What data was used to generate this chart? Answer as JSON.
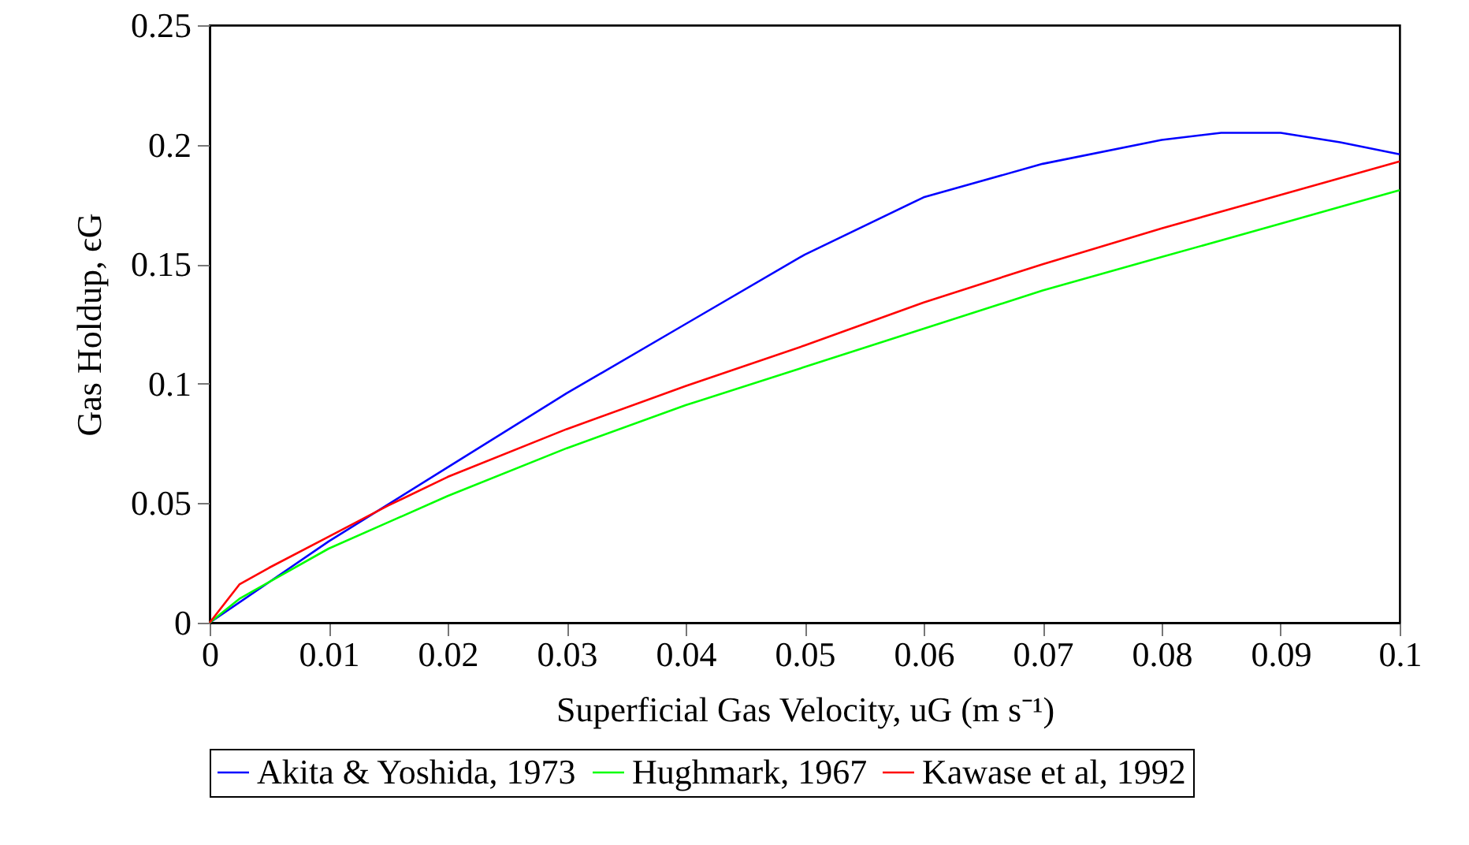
{
  "chart_data": {
    "type": "line",
    "xlabel": "Superficial Gas Velocity, uG (m s⁻¹)",
    "ylabel": "Gas Holdup, ϵG",
    "x": [
      0,
      0.0025,
      0.005,
      0.01,
      0.015,
      0.02,
      0.03,
      0.04,
      0.05,
      0.06,
      0.07,
      0.08,
      0.09,
      0.1
    ],
    "series": [
      {
        "name": "Akita & Yoshida, 1973",
        "color": "#0000ff",
        "x": [
          0,
          0.005,
          0.01,
          0.02,
          0.03,
          0.04,
          0.05,
          0.06,
          0.07,
          0.08,
          0.085,
          0.088,
          0.09,
          0.095,
          0.1
        ],
        "values": [
          0,
          0.017,
          0.034,
          0.065,
          0.096,
          0.125,
          0.154,
          0.178,
          0.192,
          0.202,
          0.205,
          0.205,
          0.205,
          0.201,
          0.196
        ]
      },
      {
        "name": "Hughmark, 1967",
        "color": "#00ff00",
        "values": [
          0,
          0.01,
          0.017,
          0.031,
          0.042,
          0.053,
          0.073,
          0.091,
          0.107,
          0.123,
          0.139,
          0.153,
          0.167,
          0.181
        ]
      },
      {
        "name": "Kawase et al, 1992",
        "color": "#ff0000",
        "values": [
          0,
          0.016,
          0.023,
          0.036,
          0.049,
          0.061,
          0.081,
          0.099,
          0.116,
          0.134,
          0.15,
          0.165,
          0.179,
          0.193
        ]
      }
    ],
    "xlim": [
      0,
      0.1
    ],
    "xticks": [
      0,
      0.01,
      0.02,
      0.03,
      0.04,
      0.05,
      0.06,
      0.07,
      0.08,
      0.09,
      0.1
    ],
    "ylim": [
      0,
      0.25
    ],
    "yticks": [
      0,
      0.05,
      0.1,
      0.15,
      0.2,
      0.25
    ],
    "grid": false,
    "legend": "bottom",
    "line_style": "solid"
  }
}
